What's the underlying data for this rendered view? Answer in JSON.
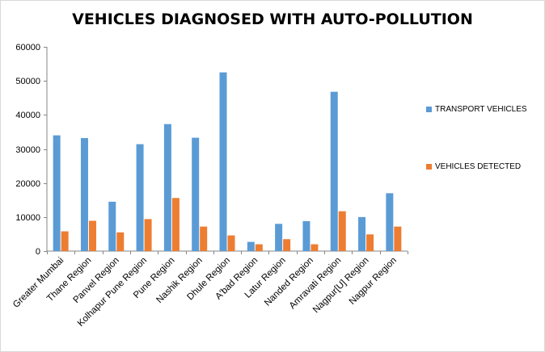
{
  "chart_data": {
    "type": "bar",
    "title": "VEHICLES DIAGNOSED WITH AUTO-POLLUTION",
    "categories": [
      "Greater Mumbai",
      "Thane Region",
      "Panvel Region",
      "Kolhapur Pune Region",
      "Pune Region",
      "Nashik Region",
      "Dhule Region",
      "A'bad Region",
      "Latur Region",
      "Nanded Region",
      "Amravati Region",
      "Nagpur[U] Region",
      "Nagpur Region"
    ],
    "series": [
      {
        "name": "TRANSPORT VEHICLES",
        "color": "#5b9bd5",
        "values": [
          34000,
          33200,
          14500,
          31400,
          37300,
          33300,
          52500,
          2700,
          8000,
          8800,
          46800,
          10000,
          17000
        ]
      },
      {
        "name": "VEHICLES DETECTED",
        "color": "#ed7d31",
        "values": [
          5800,
          8900,
          5500,
          9400,
          15600,
          7200,
          4600,
          2000,
          3500,
          2000,
          11700,
          4900,
          7200
        ]
      }
    ],
    "ylim": [
      0,
      60000
    ],
    "yticks": [
      "0",
      "10000",
      "20000",
      "30000",
      "40000",
      "50000",
      "60000"
    ],
    "xlabel": "",
    "ylabel": "",
    "grid": false,
    "legend_position": "right"
  }
}
